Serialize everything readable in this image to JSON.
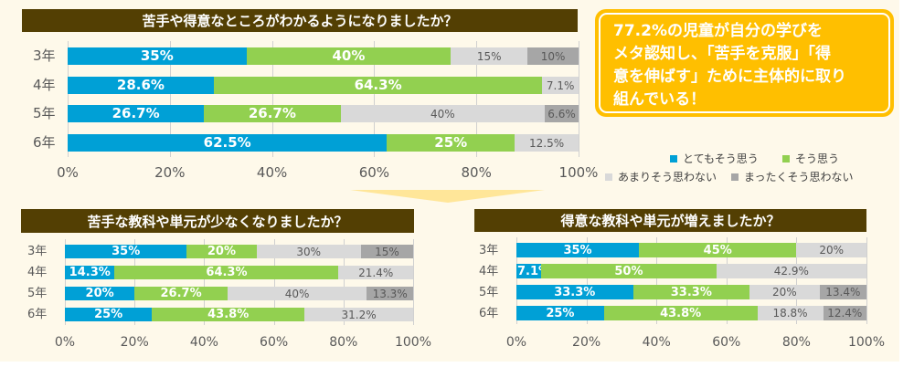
{
  "colors": {
    "background": "#FEF9EA",
    "title_bar": "#533F03",
    "callout": "#FFBF00",
    "series": [
      "#00A0D6",
      "#92D050",
      "#D9D9D9",
      "#A6A6A6"
    ]
  },
  "callout": {
    "lines": [
      "77.2%の児童が自分の学びを",
      "メタ認知し、「苦手を克服」「得",
      "意を伸ばす」ために主体的に取り",
      "組んでいる！"
    ]
  },
  "legend": {
    "items": [
      {
        "label": "とてもそう思う",
        "color": "#00A0D6"
      },
      {
        "label": "そう思う",
        "color": "#92D050"
      },
      {
        "label": "あまりそう思わない",
        "color": "#D9D9D9"
      },
      {
        "label": "まったくそう思わない",
        "color": "#A6A6A6"
      }
    ]
  },
  "chart_data": [
    {
      "type": "bar",
      "orientation": "horizontal-stacked-100",
      "title": "苦手や得意なところがわかるようになりましたか？",
      "categories": [
        "3年",
        "4年",
        "5年",
        "6年"
      ],
      "x_ticks": [
        "0%",
        "20%",
        "40%",
        "60%",
        "80%",
        "100%"
      ],
      "xlim": [
        0,
        100
      ],
      "series": [
        {
          "name": "とてもそう思う",
          "values": [
            35,
            28.6,
            26.7,
            62.5
          ],
          "labels": [
            "35%",
            "28.6%",
            "26.7%",
            "62.5%"
          ]
        },
        {
          "name": "そう思う",
          "values": [
            40,
            64.3,
            26.7,
            25
          ],
          "labels": [
            "40%",
            "64.3%",
            "26.7%",
            "25%"
          ]
        },
        {
          "name": "あまりそう思わない",
          "values": [
            15,
            7.1,
            40,
            12.5
          ],
          "labels": [
            "15%",
            "7.1%",
            "40%",
            "12.5%"
          ]
        },
        {
          "name": "まったくそう思わない",
          "values": [
            10,
            0,
            6.6,
            0
          ],
          "labels": [
            "10%",
            "",
            "6.6%",
            ""
          ]
        }
      ]
    },
    {
      "type": "bar",
      "orientation": "horizontal-stacked-100",
      "title": "苦手な教科や単元が少なくなりましたか？",
      "categories": [
        "3年",
        "4年",
        "5年",
        "6年"
      ],
      "x_ticks": [
        "0%",
        "20%",
        "40%",
        "60%",
        "80%",
        "100%"
      ],
      "xlim": [
        0,
        100
      ],
      "series": [
        {
          "name": "とてもそう思う",
          "values": [
            35,
            14.3,
            20,
            25
          ],
          "labels": [
            "35%",
            "14.3%",
            "20%",
            "25%"
          ]
        },
        {
          "name": "そう思う",
          "values": [
            20,
            64.3,
            26.7,
            43.8
          ],
          "labels": [
            "20%",
            "64.3%",
            "26.7%",
            "43.8%"
          ]
        },
        {
          "name": "あまりそう思わない",
          "values": [
            30,
            21.4,
            40,
            31.2
          ],
          "labels": [
            "30%",
            "21.4%",
            "40%",
            "31.2%"
          ]
        },
        {
          "name": "まったくそう思わない",
          "values": [
            15,
            0,
            13.3,
            0
          ],
          "labels": [
            "15%",
            "",
            "13.3%",
            ""
          ]
        }
      ]
    },
    {
      "type": "bar",
      "orientation": "horizontal-stacked-100",
      "title": "得意な教科や単元が増えましたか？",
      "categories": [
        "3年",
        "4年",
        "5年",
        "6年"
      ],
      "x_ticks": [
        "0%",
        "20%",
        "40%",
        "60%",
        "80%",
        "100%"
      ],
      "xlim": [
        0,
        100
      ],
      "series": [
        {
          "name": "とてもそう思う",
          "values": [
            35,
            7.1,
            33.3,
            25
          ],
          "labels": [
            "35%",
            "7.1%",
            "33.3%",
            "25%"
          ]
        },
        {
          "name": "そう思う",
          "values": [
            45,
            50,
            33.3,
            43.8
          ],
          "labels": [
            "45%",
            "50%",
            "33.3%",
            "43.8%"
          ]
        },
        {
          "name": "あまりそう思わない",
          "values": [
            20,
            42.9,
            20,
            18.8
          ],
          "labels": [
            "20%",
            "42.9%",
            "20%",
            "18.8%"
          ]
        },
        {
          "name": "まったくそう思わない",
          "values": [
            0,
            0,
            13.4,
            12.4
          ],
          "labels": [
            "",
            "",
            "13.4%",
            "12.4%"
          ]
        }
      ]
    }
  ]
}
